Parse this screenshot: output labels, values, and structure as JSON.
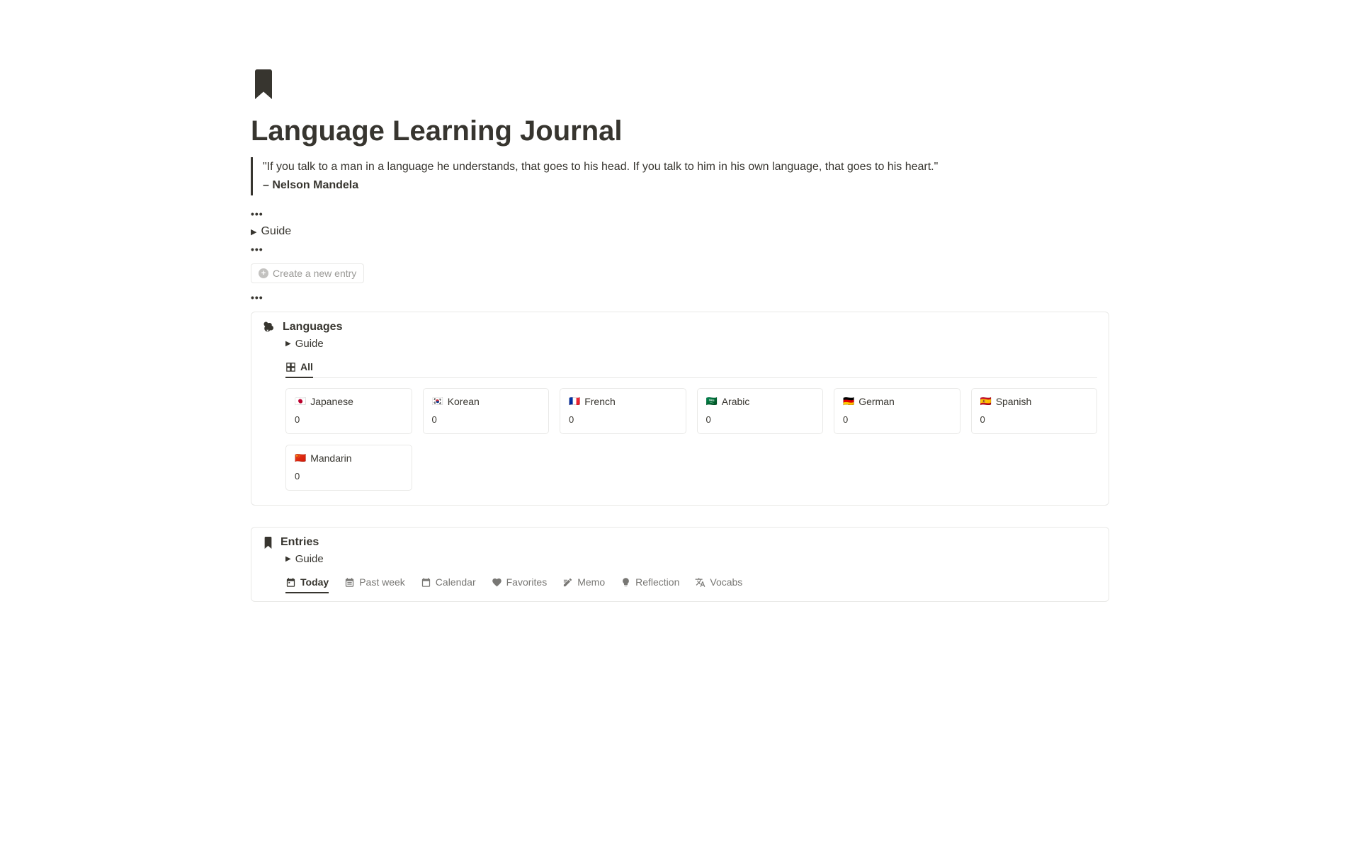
{
  "page": {
    "title": "Language Learning Journal",
    "icon_color": "#37352f"
  },
  "quote": {
    "text": "\"If you talk to a man in a language he understands, that goes to his head. If you talk to him in his own language, that goes to his heart.\"",
    "author": "– Nelson Mandela"
  },
  "toggles": {
    "main_guide": "Guide"
  },
  "create_button": {
    "label": "Create a new entry"
  },
  "ellipsis": "•••",
  "languages_panel": {
    "title": "Languages",
    "guide_label": "Guide",
    "all_tab": "All",
    "cards": [
      {
        "flag": "🇯🇵",
        "name": "Japanese",
        "count": "0"
      },
      {
        "flag": "🇰🇷",
        "name": "Korean",
        "count": "0"
      },
      {
        "flag": "🇫🇷",
        "name": "French",
        "count": "0"
      },
      {
        "flag": "🇸🇦",
        "name": "Arabic",
        "count": "0"
      },
      {
        "flag": "🇩🇪",
        "name": "German",
        "count": "0"
      },
      {
        "flag": "🇪🇸",
        "name": "Spanish",
        "count": "0"
      },
      {
        "flag": "🇨🇳",
        "name": "Mandarin",
        "count": "0"
      }
    ]
  },
  "entries_panel": {
    "title": "Entries",
    "guide_label": "Guide",
    "tabs": [
      {
        "label": "Today",
        "active": true
      },
      {
        "label": "Past week"
      },
      {
        "label": "Calendar"
      },
      {
        "label": "Favorites"
      },
      {
        "label": "Memo"
      },
      {
        "label": "Reflection"
      },
      {
        "label": "Vocabs"
      }
    ]
  },
  "colors": {
    "text": "#37352f",
    "muted": "#787774",
    "border": "#e9e9e7",
    "background": "#ffffff"
  }
}
